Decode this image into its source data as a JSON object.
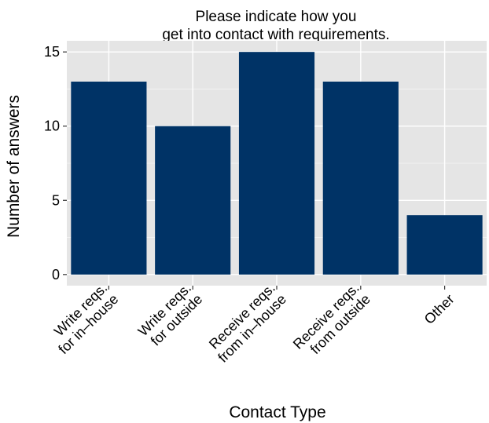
{
  "chart_data": {
    "type": "bar",
    "title_lines": [
      "Please indicate how you",
      "get into contact with requirements."
    ],
    "xlabel": "Contact Type",
    "ylabel": "Number of answers",
    "categories": [
      [
        "Write reqs.",
        "for in–house"
      ],
      [
        "Write reqs.",
        "for outside"
      ],
      [
        "Receive reqs.",
        "from in–house"
      ],
      [
        "Receive reqs.",
        "from outside"
      ],
      [
        "Other"
      ]
    ],
    "values": [
      13,
      10,
      15,
      13,
      4
    ],
    "yticks": [
      0,
      5,
      10,
      15
    ],
    "ylim": [
      -0.75,
      15.75
    ],
    "grid": true,
    "colors": {
      "bar": "#003366",
      "panel": "#e5e5e5",
      "grid": "#ffffff"
    }
  }
}
